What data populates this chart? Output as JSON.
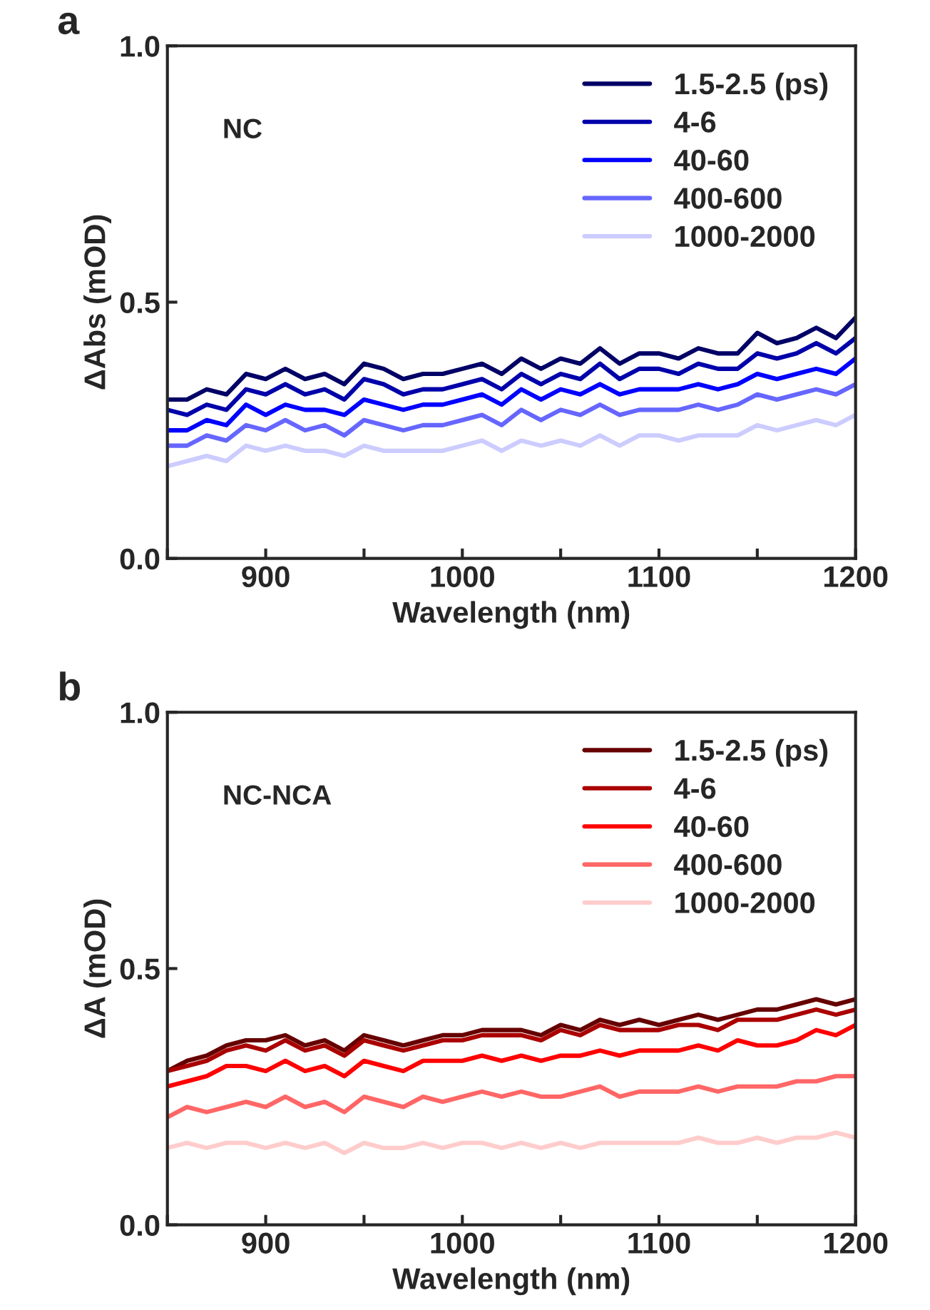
{
  "chart_data": [
    {
      "type": "line",
      "title": "a",
      "xlabel": "Wavelength (nm)",
      "ylabel": "ΔAbs (mOD)",
      "annotations": [
        "NC"
      ],
      "legend": "top right",
      "grid": false,
      "line_style": "solid",
      "xlim": [
        850,
        1200
      ],
      "ylim": [
        0,
        1
      ],
      "xticks": [
        {
          "value": 850,
          "label": null
        },
        900,
        {
          "value": 950,
          "label": null
        },
        1000,
        {
          "value": 1050,
          "label": null
        },
        1100,
        {
          "value": 1150,
          "label": null
        },
        1200
      ],
      "yticks": [
        {
          "value": 0,
          "label": "0.0"
        },
        {
          "value": 0.5,
          "label": "0.5"
        },
        {
          "value": 1,
          "label": "1.0"
        }
      ],
      "x": [
        850,
        860,
        870,
        880,
        890,
        900,
        910,
        920,
        930,
        940,
        950,
        960,
        970,
        980,
        990,
        1000,
        1010,
        1020,
        1030,
        1040,
        1050,
        1060,
        1070,
        1080,
        1090,
        1100,
        1110,
        1120,
        1130,
        1140,
        1150,
        1160,
        1170,
        1180,
        1190,
        1200
      ],
      "series": [
        {
          "name": "1.5-2.5 (ps)",
          "color": "#000066",
          "values": [
            0.31,
            0.31,
            0.33,
            0.32,
            0.36,
            0.35,
            0.37,
            0.35,
            0.36,
            0.34,
            0.38,
            0.37,
            0.35,
            0.36,
            0.36,
            0.37,
            0.38,
            0.36,
            0.39,
            0.37,
            0.39,
            0.38,
            0.41,
            0.38,
            0.4,
            0.4,
            0.39,
            0.41,
            0.4,
            0.4,
            0.44,
            0.42,
            0.43,
            0.45,
            0.43,
            0.47
          ]
        },
        {
          "name": "4-6",
          "color": "#0000aa",
          "values": [
            0.29,
            0.28,
            0.3,
            0.29,
            0.33,
            0.32,
            0.34,
            0.32,
            0.33,
            0.31,
            0.35,
            0.34,
            0.32,
            0.33,
            0.33,
            0.34,
            0.35,
            0.33,
            0.36,
            0.34,
            0.36,
            0.35,
            0.38,
            0.35,
            0.37,
            0.37,
            0.36,
            0.38,
            0.37,
            0.37,
            0.4,
            0.39,
            0.4,
            0.42,
            0.4,
            0.43
          ]
        },
        {
          "name": "40-60",
          "color": "#0000ff",
          "values": [
            0.25,
            0.25,
            0.27,
            0.26,
            0.3,
            0.28,
            0.3,
            0.29,
            0.29,
            0.28,
            0.31,
            0.3,
            0.29,
            0.3,
            0.3,
            0.31,
            0.32,
            0.3,
            0.33,
            0.31,
            0.33,
            0.32,
            0.34,
            0.32,
            0.33,
            0.33,
            0.33,
            0.34,
            0.33,
            0.34,
            0.36,
            0.35,
            0.36,
            0.37,
            0.36,
            0.39
          ]
        },
        {
          "name": "400-600",
          "color": "#6666ff",
          "values": [
            0.22,
            0.22,
            0.24,
            0.23,
            0.26,
            0.25,
            0.27,
            0.25,
            0.26,
            0.24,
            0.27,
            0.26,
            0.25,
            0.26,
            0.26,
            0.27,
            0.28,
            0.26,
            0.29,
            0.27,
            0.29,
            0.28,
            0.3,
            0.28,
            0.29,
            0.29,
            0.29,
            0.3,
            0.29,
            0.3,
            0.32,
            0.31,
            0.32,
            0.33,
            0.32,
            0.34
          ]
        },
        {
          "name": "1000-2000",
          "color": "#ccccff",
          "values": [
            0.18,
            0.19,
            0.2,
            0.19,
            0.22,
            0.21,
            0.22,
            0.21,
            0.21,
            0.2,
            0.22,
            0.21,
            0.21,
            0.21,
            0.21,
            0.22,
            0.23,
            0.21,
            0.23,
            0.22,
            0.23,
            0.22,
            0.24,
            0.22,
            0.24,
            0.24,
            0.23,
            0.24,
            0.24,
            0.24,
            0.26,
            0.25,
            0.26,
            0.27,
            0.26,
            0.28
          ]
        }
      ]
    },
    {
      "type": "line",
      "title": "b",
      "xlabel": "Wavelength (nm)",
      "ylabel": "ΔA (mOD)",
      "annotations": [
        "NC-NCA"
      ],
      "legend": "top right",
      "grid": false,
      "line_style": "solid",
      "xlim": [
        850,
        1200
      ],
      "ylim": [
        0,
        1
      ],
      "xticks": [
        {
          "value": 850,
          "label": null
        },
        900,
        {
          "value": 950,
          "label": null
        },
        1000,
        {
          "value": 1050,
          "label": null
        },
        1100,
        {
          "value": 1150,
          "label": null
        },
        1200
      ],
      "yticks": [
        {
          "value": 0,
          "label": "0.0"
        },
        {
          "value": 0.5,
          "label": "0.5"
        },
        {
          "value": 1,
          "label": "1.0"
        }
      ],
      "x": [
        850,
        860,
        870,
        880,
        890,
        900,
        910,
        920,
        930,
        940,
        950,
        960,
        970,
        980,
        990,
        1000,
        1010,
        1020,
        1030,
        1040,
        1050,
        1060,
        1070,
        1080,
        1090,
        1100,
        1110,
        1120,
        1130,
        1140,
        1150,
        1160,
        1170,
        1180,
        1190,
        1200
      ],
      "series": [
        {
          "name": "1.5-2.5 (ps)",
          "color": "#660000",
          "values": [
            0.3,
            0.32,
            0.33,
            0.35,
            0.36,
            0.36,
            0.37,
            0.35,
            0.36,
            0.34,
            0.37,
            0.36,
            0.35,
            0.36,
            0.37,
            0.37,
            0.38,
            0.38,
            0.38,
            0.37,
            0.39,
            0.38,
            0.4,
            0.39,
            0.4,
            0.39,
            0.4,
            0.41,
            0.4,
            0.41,
            0.42,
            0.42,
            0.43,
            0.44,
            0.43,
            0.44
          ]
        },
        {
          "name": "4-6",
          "color": "#aa0000",
          "values": [
            0.3,
            0.31,
            0.32,
            0.34,
            0.35,
            0.34,
            0.36,
            0.34,
            0.35,
            0.33,
            0.36,
            0.35,
            0.34,
            0.35,
            0.36,
            0.36,
            0.37,
            0.37,
            0.37,
            0.36,
            0.38,
            0.37,
            0.39,
            0.38,
            0.38,
            0.38,
            0.39,
            0.39,
            0.38,
            0.4,
            0.4,
            0.4,
            0.41,
            0.42,
            0.41,
            0.42
          ]
        },
        {
          "name": "40-60",
          "color": "#ff0000",
          "values": [
            0.27,
            0.28,
            0.29,
            0.31,
            0.31,
            0.3,
            0.32,
            0.3,
            0.31,
            0.29,
            0.32,
            0.31,
            0.3,
            0.32,
            0.32,
            0.32,
            0.33,
            0.32,
            0.33,
            0.32,
            0.33,
            0.33,
            0.34,
            0.33,
            0.34,
            0.34,
            0.34,
            0.35,
            0.34,
            0.36,
            0.35,
            0.35,
            0.36,
            0.38,
            0.37,
            0.39
          ]
        },
        {
          "name": "400-600",
          "color": "#ff6666",
          "values": [
            0.21,
            0.23,
            0.22,
            0.23,
            0.24,
            0.23,
            0.25,
            0.23,
            0.24,
            0.22,
            0.25,
            0.24,
            0.23,
            0.25,
            0.24,
            0.25,
            0.26,
            0.25,
            0.26,
            0.25,
            0.25,
            0.26,
            0.27,
            0.25,
            0.26,
            0.26,
            0.26,
            0.27,
            0.26,
            0.27,
            0.27,
            0.27,
            0.28,
            0.28,
            0.29,
            0.29
          ]
        },
        {
          "name": "1000-2000",
          "color": "#ffcccc",
          "values": [
            0.15,
            0.16,
            0.15,
            0.16,
            0.16,
            0.15,
            0.16,
            0.15,
            0.16,
            0.14,
            0.16,
            0.15,
            0.15,
            0.16,
            0.15,
            0.16,
            0.16,
            0.15,
            0.16,
            0.15,
            0.16,
            0.15,
            0.16,
            0.16,
            0.16,
            0.16,
            0.16,
            0.17,
            0.16,
            0.16,
            0.17,
            0.16,
            0.17,
            0.17,
            0.18,
            0.17
          ]
        }
      ]
    }
  ]
}
